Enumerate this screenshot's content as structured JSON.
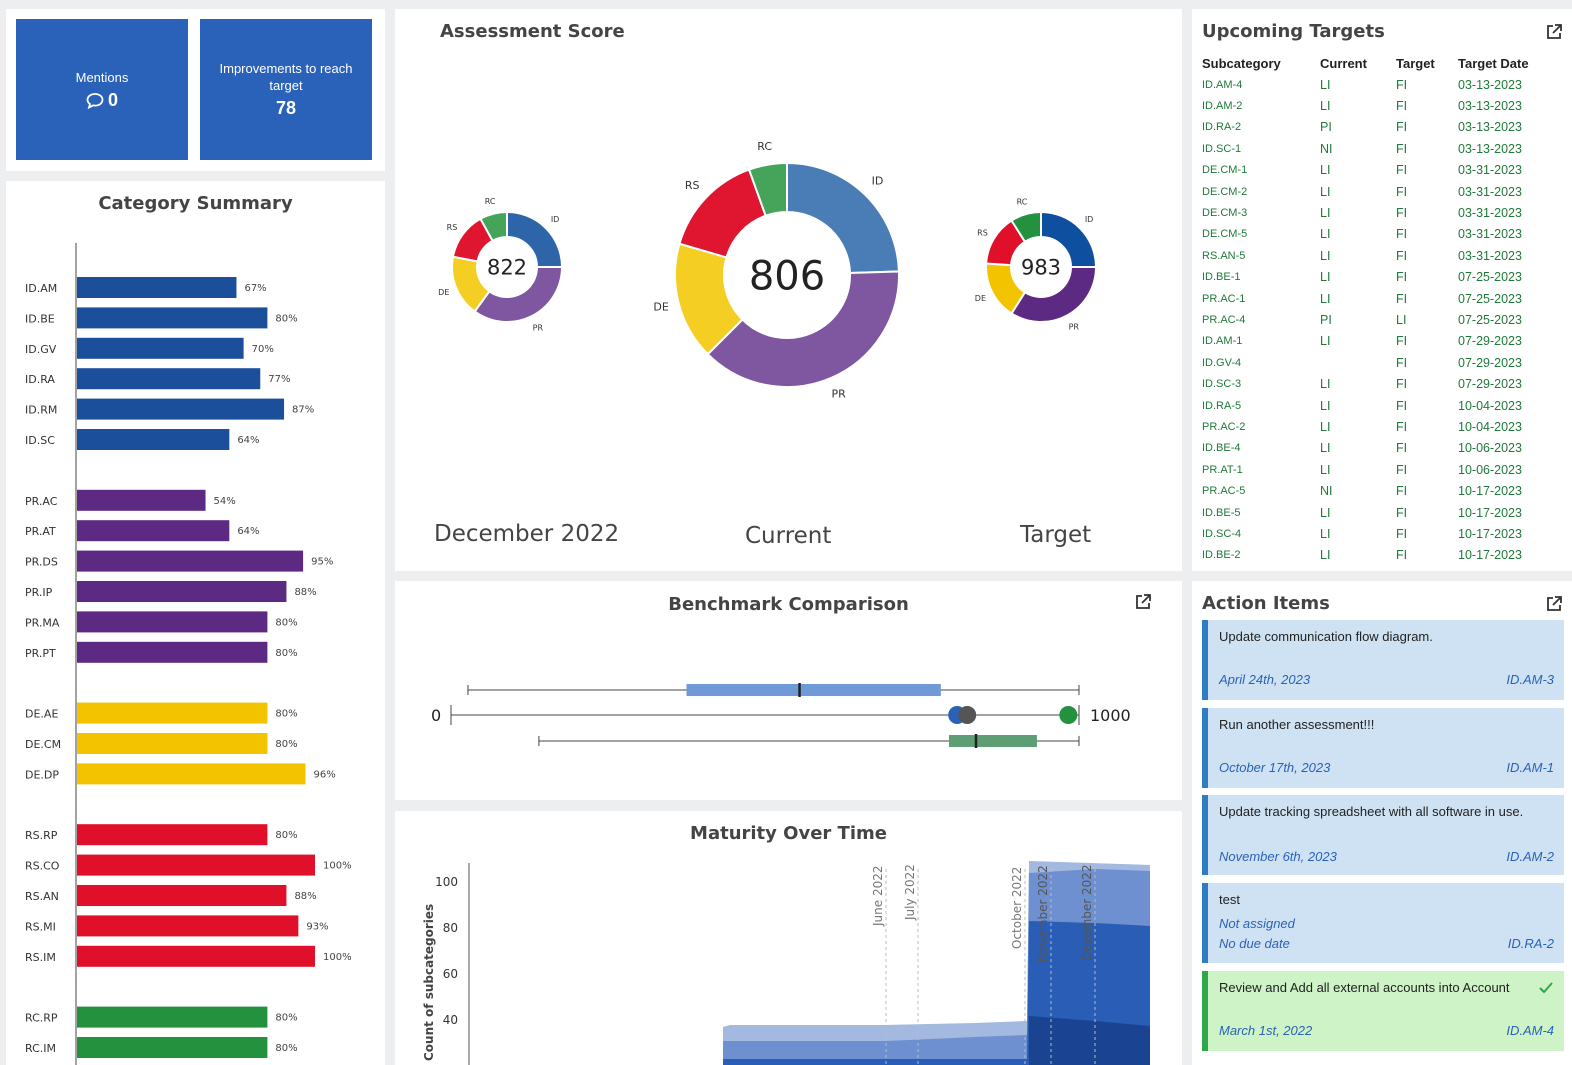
{
  "tiles": [
    {
      "label": "Mentions",
      "value": "0",
      "icon": "comment-icon"
    },
    {
      "label": "Improvements to reach target",
      "value": "78"
    }
  ],
  "category_summary": {
    "title": "Category Summary",
    "chart_data": {
      "type": "bar",
      "orientation": "horizontal",
      "xlim": [
        0,
        100
      ],
      "groups": [
        {
          "color": "#1b4f9c",
          "items": [
            [
              "ID.AM",
              67
            ],
            [
              "ID.BE",
              80
            ],
            [
              "ID.GV",
              70
            ],
            [
              "ID.RA",
              77
            ],
            [
              "ID.RM",
              87
            ],
            [
              "ID.SC",
              64
            ]
          ]
        },
        {
          "color": "#5c2a82",
          "items": [
            [
              "PR.AC",
              54
            ],
            [
              "PR.AT",
              64
            ],
            [
              "PR.DS",
              95
            ],
            [
              "PR.IP",
              88
            ],
            [
              "PR.MA",
              80
            ],
            [
              "PR.PT",
              80
            ]
          ]
        },
        {
          "color": "#f4c300",
          "items": [
            [
              "DE.AE",
              80
            ],
            [
              "DE.CM",
              80
            ],
            [
              "DE.DP",
              96
            ]
          ]
        },
        {
          "color": "#e0102a",
          "items": [
            [
              "RS.RP",
              80
            ],
            [
              "RS.CO",
              100
            ],
            [
              "RS.AN",
              88
            ],
            [
              "RS.MI",
              93
            ],
            [
              "RS.IM",
              100
            ]
          ]
        },
        {
          "color": "#23913e",
          "items": [
            [
              "RC.RP",
              80
            ],
            [
              "RC.IM",
              80
            ]
          ]
        }
      ]
    }
  },
  "assessment": {
    "title": "Assessment Score",
    "colors": {
      "ID": "#4a7db5",
      "PR": "#7e57a0",
      "DE": "#f5ce24",
      "RS": "#e0152f",
      "RC": "#45a35a"
    },
    "chart_data": [
      {
        "type": "pie",
        "caption": "December 2022",
        "total": "822",
        "labels": [
          "ID",
          "PR",
          "DE",
          "RS",
          "RC"
        ],
        "values": [
          0.25,
          0.35,
          0.18,
          0.14,
          0.08
        ],
        "colors": [
          "#2e64a8",
          "#7e57a0",
          "#f5ce24",
          "#e0152f",
          "#45a35a"
        ]
      },
      {
        "type": "pie",
        "caption": "Current",
        "total": "806",
        "labels": [
          "ID",
          "PR",
          "DE",
          "RS",
          "RC"
        ],
        "values": [
          0.245,
          0.38,
          0.17,
          0.15,
          0.055
        ],
        "colors": [
          "#4a7db5",
          "#7e57a0",
          "#f5ce24",
          "#e0152f",
          "#45a35a"
        ]
      },
      {
        "type": "pie",
        "caption": "Target",
        "total": "983",
        "labels": [
          "ID",
          "PR",
          "DE",
          "RS",
          "RC"
        ],
        "values": [
          0.25,
          0.34,
          0.17,
          0.15,
          0.09
        ],
        "colors": [
          "#0f4fa0",
          "#5c2a82",
          "#f4c300",
          "#e0102a",
          "#23913e"
        ]
      }
    ]
  },
  "benchmark": {
    "title": "Benchmark Comparison",
    "min_label": "0",
    "max_label": "1000",
    "chart_data": {
      "type": "box",
      "xlim": [
        0,
        1000
      ],
      "upper_box": {
        "min": 27,
        "q1": 375,
        "median": 555,
        "q3": 780,
        "max": 1000
      },
      "lower_box": {
        "min": 140,
        "q1": 793,
        "median": 836,
        "q3": 933,
        "max": 1000
      },
      "points": [
        {
          "value": 806,
          "color": "#2a62b9"
        },
        {
          "value": 822,
          "color": "#555555"
        },
        {
          "value": 983,
          "color": "#23913e"
        }
      ]
    }
  },
  "maturity": {
    "title": "Maturity Over Time",
    "ylabel": "Count of subcategories",
    "yticks": [
      "100",
      "80",
      "60",
      "40"
    ],
    "markers": [
      "June 2022",
      "July 2022",
      "October 2022",
      "November 2022",
      "December 2022"
    ]
  },
  "upcoming": {
    "title": "Upcoming Targets",
    "columns": [
      "Subcategory",
      "Current",
      "Target",
      "Target Date"
    ],
    "rows": [
      [
        "ID.AM-4",
        "LI",
        "FI",
        "03-13-2023"
      ],
      [
        "ID.AM-2",
        "LI",
        "FI",
        "03-13-2023"
      ],
      [
        "ID.RA-2",
        "PI",
        "FI",
        "03-13-2023"
      ],
      [
        "ID.SC-1",
        "NI",
        "FI",
        "03-13-2023"
      ],
      [
        "DE.CM-1",
        "LI",
        "FI",
        "03-31-2023"
      ],
      [
        "DE.CM-2",
        "LI",
        "FI",
        "03-31-2023"
      ],
      [
        "DE.CM-3",
        "LI",
        "FI",
        "03-31-2023"
      ],
      [
        "DE.CM-5",
        "LI",
        "FI",
        "03-31-2023"
      ],
      [
        "RS.AN-5",
        "LI",
        "FI",
        "03-31-2023"
      ],
      [
        "ID.BE-1",
        "LI",
        "FI",
        "07-25-2023"
      ],
      [
        "PR.AC-1",
        "LI",
        "FI",
        "07-25-2023"
      ],
      [
        "PR.AC-4",
        "PI",
        "LI",
        "07-25-2023"
      ],
      [
        "ID.AM-1",
        "LI",
        "FI",
        "07-29-2023"
      ],
      [
        "ID.GV-4",
        "",
        "FI",
        "07-29-2023"
      ],
      [
        "ID.SC-3",
        "LI",
        "FI",
        "07-29-2023"
      ],
      [
        "ID.RA-5",
        "LI",
        "FI",
        "10-04-2023"
      ],
      [
        "PR.AC-2",
        "LI",
        "FI",
        "10-04-2023"
      ],
      [
        "ID.BE-4",
        "LI",
        "FI",
        "10-06-2023"
      ],
      [
        "PR.AT-1",
        "LI",
        "FI",
        "10-06-2023"
      ],
      [
        "PR.AC-5",
        "NI",
        "FI",
        "10-17-2023"
      ],
      [
        "ID.BE-5",
        "LI",
        "FI",
        "10-17-2023"
      ],
      [
        "ID.SC-4",
        "LI",
        "FI",
        "10-17-2023"
      ],
      [
        "ID.BE-2",
        "LI",
        "FI",
        "10-17-2023"
      ]
    ]
  },
  "actions": {
    "title": "Action Items",
    "items": [
      {
        "text": "Update communication flow diagram.",
        "date": "April 24th, 2023",
        "code": "ID.AM-3"
      },
      {
        "text": "Run another assessment!!!",
        "date": "October 17th, 2023",
        "code": "ID.AM-1"
      },
      {
        "text": "Update tracking spreadsheet with all software in use.",
        "date": "November 6th, 2023",
        "code": "ID.AM-2"
      },
      {
        "text": "test",
        "assignee": "Not assigned",
        "date": "No due date",
        "code": "ID.RA-2"
      },
      {
        "text": "Review and Add all external accounts into Account",
        "date": "March 1st, 2022",
        "code": "ID.AM-4",
        "done": true
      }
    ]
  }
}
